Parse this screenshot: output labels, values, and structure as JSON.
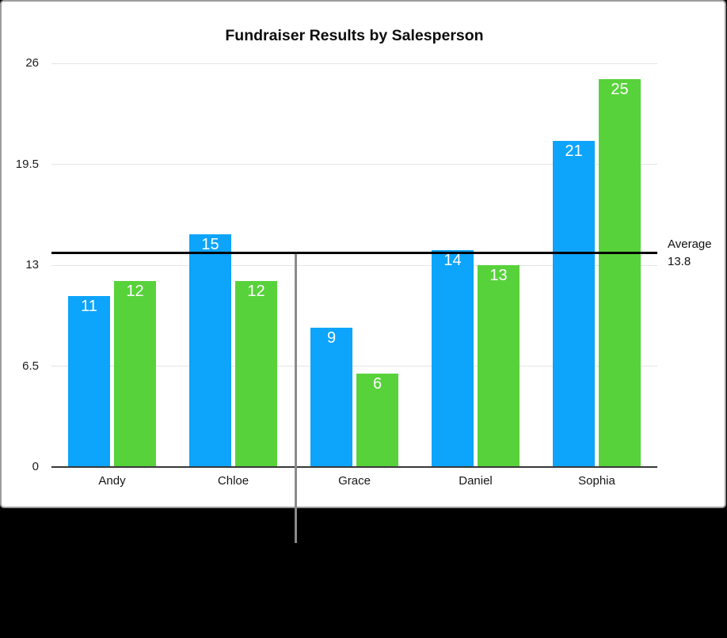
{
  "chart_data": {
    "type": "bar",
    "title": "Fundraiser Results by Salesperson",
    "categories": [
      "Andy",
      "Chloe",
      "Grace",
      "Daniel",
      "Sophia"
    ],
    "series": [
      {
        "name": "blue",
        "color": "#0da4fb",
        "values": [
          11,
          15,
          9,
          14,
          21
        ]
      },
      {
        "name": "green",
        "color": "#58d23b",
        "values": [
          12,
          12,
          6,
          13,
          25
        ]
      }
    ],
    "y_axis": {
      "ticks": [
        26,
        19.5,
        13,
        6.5,
        0
      ],
      "tick_labels": [
        "26",
        "19.5",
        "13",
        "6.5",
        "0"
      ],
      "range": [
        0,
        26
      ]
    },
    "bar_value_labels": {
      "blue": [
        "11",
        "15",
        "9",
        "14",
        "21"
      ],
      "green": [
        "12",
        "12",
        "6",
        "13",
        "25"
      ]
    },
    "grid": true,
    "legend": "none",
    "annotations": {
      "average_line": {
        "value": 13.8,
        "label_line1": "Average",
        "label_line2": "13.8",
        "color": "#000000"
      }
    }
  },
  "colors": {
    "bar_blue": "#0da4fb",
    "bar_green": "#58d23b",
    "average_line": "#000000",
    "gridline": "#e4e4e4",
    "axis_line": "#383838",
    "panel_border": "#9c9c9c",
    "callout_line": "#8a8a8a",
    "background": "#000000",
    "panel_background": "#ffffff",
    "value_label_text": "#ffffff"
  }
}
